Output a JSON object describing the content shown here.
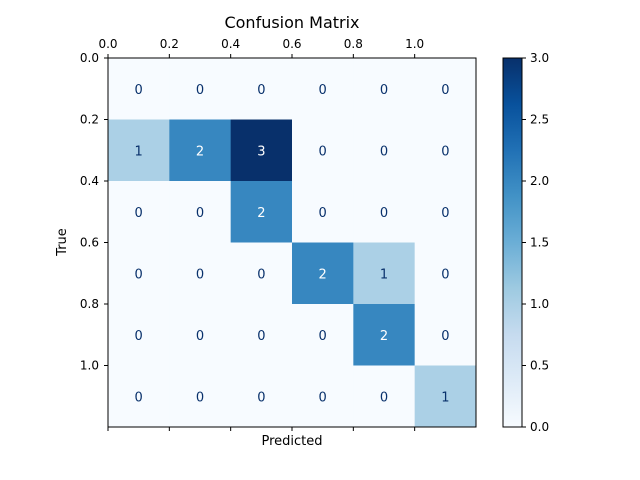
{
  "chart_data": {
    "type": "heatmap",
    "title": "Confusion Matrix",
    "xlabel": "Predicted",
    "ylabel": "True",
    "x_tick_labels": [
      "0.0",
      "0.2",
      "0.4",
      "0.6",
      "0.8",
      "1.0"
    ],
    "y_tick_labels": [
      "0.0",
      "0.2",
      "0.4",
      "0.6",
      "0.8",
      "1.0"
    ],
    "matrix": [
      [
        0,
        0,
        0,
        0,
        0,
        0
      ],
      [
        1,
        2,
        3,
        0,
        0,
        0
      ],
      [
        0,
        0,
        2,
        0,
        0,
        0
      ],
      [
        0,
        0,
        0,
        2,
        1,
        0
      ],
      [
        0,
        0,
        0,
        0,
        2,
        0
      ],
      [
        0,
        0,
        0,
        0,
        0,
        1
      ]
    ],
    "vmin": 0,
    "vmax": 3,
    "colormap": "Blues",
    "colorbar_ticks": [
      "0.0",
      "0.5",
      "1.0",
      "1.5",
      "2.0",
      "2.5",
      "3.0"
    ],
    "grid": false
  }
}
